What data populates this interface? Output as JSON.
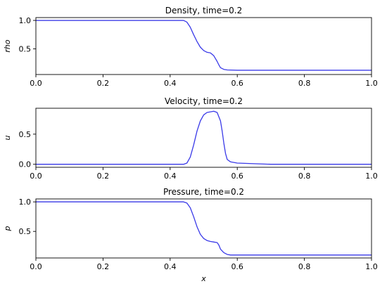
{
  "colors": {
    "line": "#3a3ae8"
  },
  "chart_data": [
    {
      "type": "line",
      "title": "Density, time=0.2",
      "ylabel": "rho",
      "xlabel": "",
      "xlim": [
        0,
        1
      ],
      "ylim": [
        0.05,
        1.05
      ],
      "xticks": [
        "0.0",
        "0.2",
        "0.4",
        "0.6",
        "0.8",
        "1.0"
      ],
      "yticks": [
        "0.5",
        "1.0"
      ],
      "grid": false,
      "series": [
        {
          "x": [
            0,
            0.44,
            0.45,
            0.46,
            0.47,
            0.48,
            0.49,
            0.5,
            0.51,
            0.52,
            0.53,
            0.535,
            0.54,
            0.545,
            0.55,
            0.56,
            0.57,
            0.6,
            0.7,
            1.0
          ],
          "y": [
            1.0,
            1.0,
            0.97,
            0.88,
            0.75,
            0.63,
            0.53,
            0.47,
            0.44,
            0.43,
            0.38,
            0.33,
            0.28,
            0.22,
            0.17,
            0.14,
            0.13,
            0.125,
            0.125,
            0.125
          ]
        }
      ]
    },
    {
      "type": "line",
      "title": "Velocity, time=0.2",
      "ylabel": "u",
      "xlabel": "",
      "xlim": [
        0,
        1
      ],
      "ylim": [
        -0.05,
        0.93
      ],
      "xticks": [
        "0.0",
        "0.2",
        "0.4",
        "0.6",
        "0.8",
        "1.0"
      ],
      "yticks": [
        "0.0",
        "0.5"
      ],
      "grid": false,
      "series": [
        {
          "x": [
            0,
            0.44,
            0.45,
            0.46,
            0.47,
            0.48,
            0.49,
            0.5,
            0.51,
            0.52,
            0.53,
            0.54,
            0.55,
            0.555,
            0.56,
            0.565,
            0.57,
            0.58,
            0.6,
            0.65,
            0.7,
            1.0
          ],
          "y": [
            0,
            0,
            0.02,
            0.12,
            0.32,
            0.55,
            0.72,
            0.82,
            0.86,
            0.87,
            0.88,
            0.86,
            0.72,
            0.55,
            0.35,
            0.18,
            0.08,
            0.04,
            0.02,
            0.01,
            0.0,
            0.0
          ]
        }
      ]
    },
    {
      "type": "line",
      "title": "Pressure, time=0.2",
      "ylabel": "p",
      "xlabel": "x",
      "xlim": [
        0,
        1
      ],
      "ylim": [
        0.05,
        1.05
      ],
      "xticks": [
        "0.0",
        "0.2",
        "0.4",
        "0.6",
        "0.8",
        "1.0"
      ],
      "yticks": [
        "0.5",
        "1.0"
      ],
      "grid": false,
      "series": [
        {
          "x": [
            0,
            0.44,
            0.45,
            0.46,
            0.47,
            0.48,
            0.49,
            0.5,
            0.51,
            0.52,
            0.53,
            0.54,
            0.545,
            0.55,
            0.56,
            0.57,
            0.58,
            0.6,
            0.7,
            1.0
          ],
          "y": [
            1.0,
            1.0,
            0.98,
            0.9,
            0.75,
            0.58,
            0.45,
            0.38,
            0.345,
            0.33,
            0.32,
            0.31,
            0.27,
            0.2,
            0.14,
            0.11,
            0.1,
            0.1,
            0.1,
            0.1
          ]
        }
      ]
    }
  ]
}
